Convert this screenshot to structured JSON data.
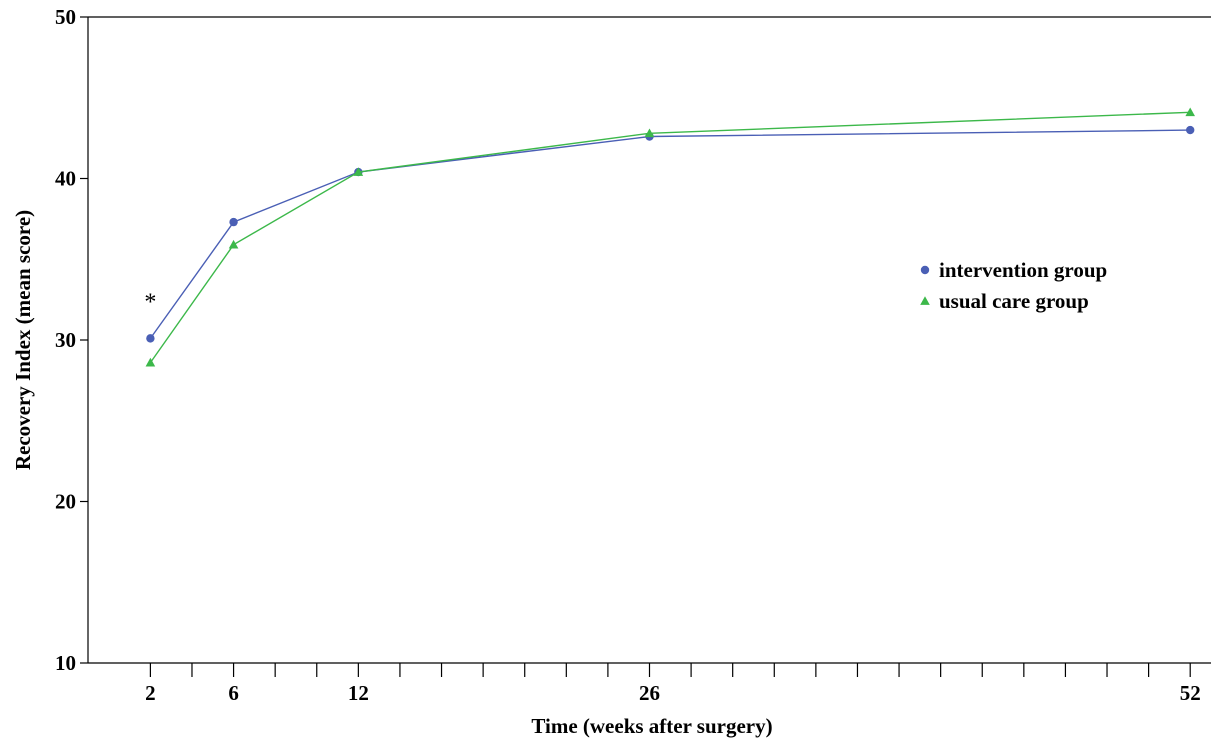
{
  "chart_data": {
    "type": "line",
    "title": "",
    "xlabel": "Time (weeks after surgery)",
    "ylabel": "Recovery Index (mean score)",
    "xlim": [
      -1,
      53
    ],
    "ylim": [
      10,
      50
    ],
    "x_ticks_labeled": [
      2,
      6,
      12,
      26,
      52
    ],
    "x_ticks_all": [
      2,
      4,
      6,
      8,
      10,
      12,
      14,
      16,
      18,
      20,
      22,
      24,
      26,
      28,
      30,
      32,
      34,
      36,
      38,
      40,
      42,
      44,
      46,
      48,
      50,
      52
    ],
    "y_ticks": [
      10,
      20,
      30,
      40,
      50
    ],
    "grid": false,
    "legend_position": "right",
    "series": [
      {
        "name": "intervention group",
        "marker": "circle",
        "color": "#4a5fb5",
        "x": [
          2,
          6,
          12,
          26,
          52
        ],
        "y": [
          30.1,
          37.3,
          40.4,
          42.6,
          43.0
        ]
      },
      {
        "name": "usual care group",
        "marker": "triangle",
        "color": "#3cb84a",
        "x": [
          2,
          6,
          12,
          26,
          52
        ],
        "y": [
          28.6,
          35.9,
          40.4,
          42.8,
          44.1
        ]
      }
    ],
    "annotations": [
      {
        "text": "*",
        "x": 2,
        "y": 32.5
      }
    ]
  }
}
